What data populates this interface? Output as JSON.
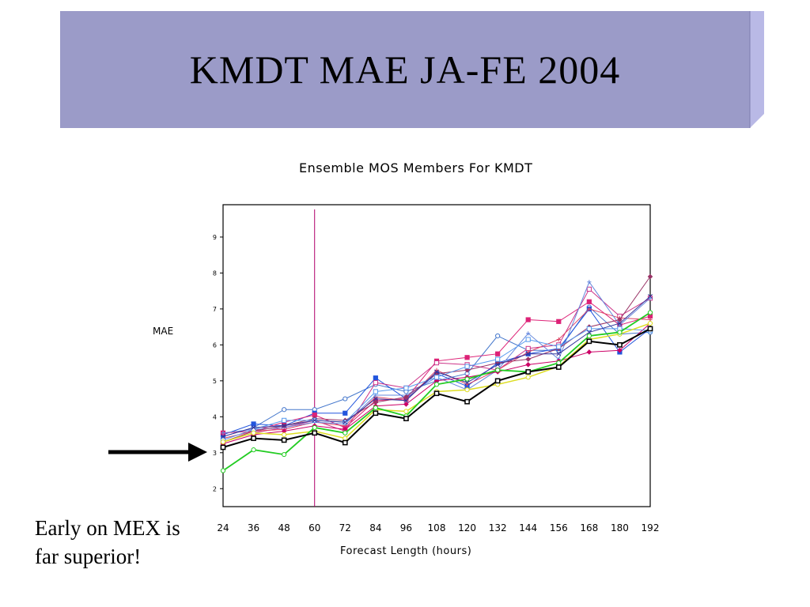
{
  "slide": {
    "title": "KMDT MAE JA-FE 2004",
    "note_line1": "Early on MEX is",
    "note_line2": "far superior!",
    "banner_color": "#9b9bc8",
    "banner_edge_color": "#b9b9e6",
    "arrow_color": "#000000"
  },
  "chart_data": {
    "type": "line",
    "title": "Ensemble MOS Members For KMDT",
    "xlabel": "Forecast Length (hours)",
    "ylabel": "MAE",
    "x": [
      24,
      36,
      48,
      60,
      72,
      84,
      96,
      108,
      120,
      132,
      144,
      156,
      168,
      180,
      192
    ],
    "x_tick_labels": [
      "24",
      "36",
      "48",
      "60",
      "72",
      "84",
      "96",
      "108",
      "120",
      "132",
      "144",
      "156",
      "168",
      "180",
      "192"
    ],
    "xlim": [
      24,
      192
    ],
    "ylim": [
      1.5,
      9.9
    ],
    "y_ticks": [
      2,
      3,
      4,
      5,
      6,
      7,
      8,
      9
    ],
    "vline_x": 60,
    "vline_color": "#b0006a",
    "series": [
      {
        "color": "#000000",
        "width": 2,
        "marker": "square",
        "values": [
          3.15,
          3.4,
          3.35,
          3.55,
          3.28,
          4.1,
          3.95,
          4.65,
          4.42,
          5.0,
          5.25,
          5.38,
          6.1,
          6.0,
          6.45
        ]
      },
      {
        "color": "#22cc22",
        "width": 1.8,
        "marker": "circle",
        "values": [
          2.5,
          3.08,
          2.95,
          3.7,
          3.55,
          4.25,
          4.02,
          4.9,
          5.05,
          5.3,
          5.25,
          5.5,
          6.25,
          6.35,
          6.9
        ]
      },
      {
        "color": "#dddd22",
        "width": 1.5,
        "marker": "circle",
        "values": [
          3.3,
          3.55,
          3.5,
          3.6,
          3.4,
          4.2,
          4.15,
          4.7,
          4.75,
          4.9,
          5.1,
          5.4,
          6.15,
          6.3,
          6.6
        ]
      },
      {
        "color": "#4477cc",
        "width": 1,
        "marker": "circle-open",
        "values": [
          3.45,
          3.7,
          4.2,
          4.2,
          4.5,
          4.9,
          4.7,
          5.0,
          5.2,
          6.25,
          5.85,
          5.85,
          7.05,
          6.3,
          6.35
        ]
      },
      {
        "color": "#2255dd",
        "width": 1,
        "marker": "square",
        "values": [
          3.5,
          3.8,
          3.75,
          4.1,
          4.1,
          5.08,
          4.5,
          5.2,
          4.85,
          5.5,
          5.75,
          5.9,
          7.0,
          5.8,
          6.45
        ]
      },
      {
        "color": "#dd2277",
        "width": 1,
        "marker": "square",
        "values": [
          3.55,
          3.6,
          3.85,
          4.05,
          3.7,
          4.45,
          4.5,
          5.55,
          5.65,
          5.75,
          6.7,
          6.65,
          7.2,
          6.55,
          6.8
        ]
      },
      {
        "color": "#cc3388",
        "width": 1,
        "marker": "square-open",
        "values": [
          3.3,
          3.55,
          3.7,
          3.9,
          3.6,
          4.95,
          4.8,
          5.5,
          5.45,
          5.3,
          5.9,
          6.0,
          7.55,
          6.8,
          7.3
        ]
      },
      {
        "color": "#dd4466",
        "width": 1,
        "marker": "plus",
        "values": [
          3.4,
          3.6,
          3.65,
          3.85,
          3.75,
          4.55,
          4.45,
          5.3,
          4.9,
          5.3,
          5.8,
          6.15,
          7.0,
          6.75,
          6.7
        ]
      },
      {
        "color": "#6688dd",
        "width": 1,
        "marker": "plus",
        "values": [
          3.55,
          3.65,
          3.7,
          3.85,
          3.8,
          4.6,
          4.6,
          5.1,
          4.75,
          5.3,
          6.32,
          5.6,
          7.75,
          6.55,
          7.3
        ]
      },
      {
        "color": "#993366",
        "width": 1,
        "marker": "diamond",
        "values": [
          3.3,
          3.6,
          3.75,
          3.95,
          3.9,
          4.4,
          4.55,
          5.2,
          5.3,
          5.5,
          5.6,
          5.9,
          6.5,
          6.7,
          7.9
        ]
      },
      {
        "color": "#cc0066",
        "width": 1,
        "marker": "diamond",
        "values": [
          3.25,
          3.5,
          3.6,
          3.75,
          3.65,
          4.3,
          4.35,
          5.0,
          5.1,
          5.25,
          5.45,
          5.55,
          5.8,
          5.85,
          6.6
        ]
      },
      {
        "color": "#5599ee",
        "width": 1,
        "marker": "square-open",
        "values": [
          3.35,
          3.65,
          3.9,
          3.9,
          3.85,
          4.7,
          4.8,
          5.1,
          5.4,
          5.6,
          6.15,
          5.95,
          6.45,
          6.45,
          6.4
        ]
      },
      {
        "color": "#333399",
        "width": 1,
        "marker": "cross",
        "values": [
          3.45,
          3.7,
          3.75,
          3.9,
          3.85,
          4.5,
          4.45,
          5.25,
          4.95,
          5.45,
          5.75,
          5.75,
          6.35,
          6.6,
          7.35
        ]
      }
    ]
  }
}
